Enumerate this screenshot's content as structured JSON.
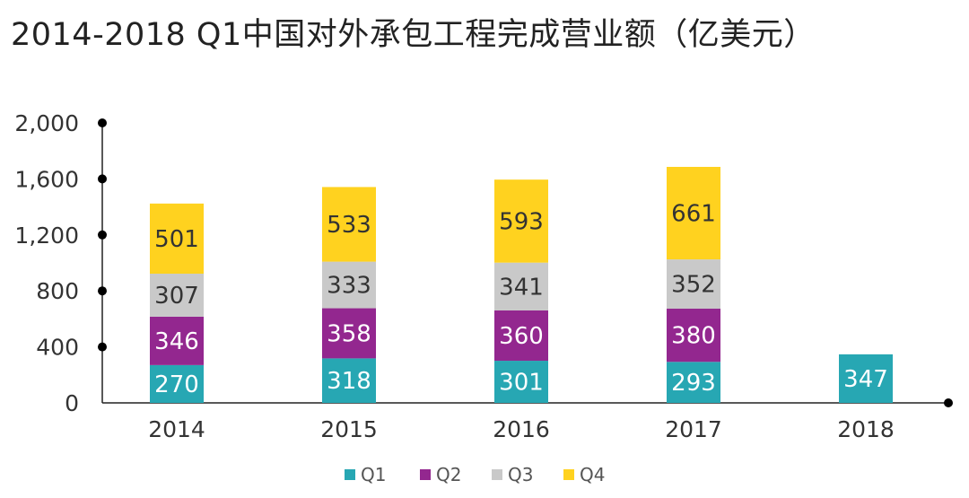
{
  "chart_data": {
    "type": "bar",
    "stacked": true,
    "title": "2014-2018 Q1中国对外承包工程完成营业额（亿美元）",
    "xlabel": "",
    "ylabel": "",
    "categories": [
      "2014",
      "2015",
      "2016",
      "2017",
      "2018"
    ],
    "series": [
      {
        "name": "Q1",
        "color": "#27A7B3",
        "values": [
          270,
          318,
          301,
          293,
          347
        ],
        "label_color": "#ffffff"
      },
      {
        "name": "Q2",
        "color": "#93278F",
        "values": [
          346,
          358,
          360,
          380,
          null
        ],
        "label_color": "#ffffff"
      },
      {
        "name": "Q3",
        "color": "#C9C9C9",
        "values": [
          307,
          333,
          341,
          352,
          null
        ],
        "label_color": "#333333"
      },
      {
        "name": "Q4",
        "color": "#FFD21F",
        "values": [
          501,
          533,
          593,
          661,
          null
        ],
        "label_color": "#333333"
      }
    ],
    "ylim": [
      0,
      2000
    ],
    "yticks": [
      0,
      400,
      800,
      1200,
      1600,
      2000
    ],
    "ytick_labels": [
      "0",
      "400",
      "800",
      "1,200",
      "1,600",
      "2,000"
    ],
    "grid": false,
    "legend": "bottom-center"
  }
}
